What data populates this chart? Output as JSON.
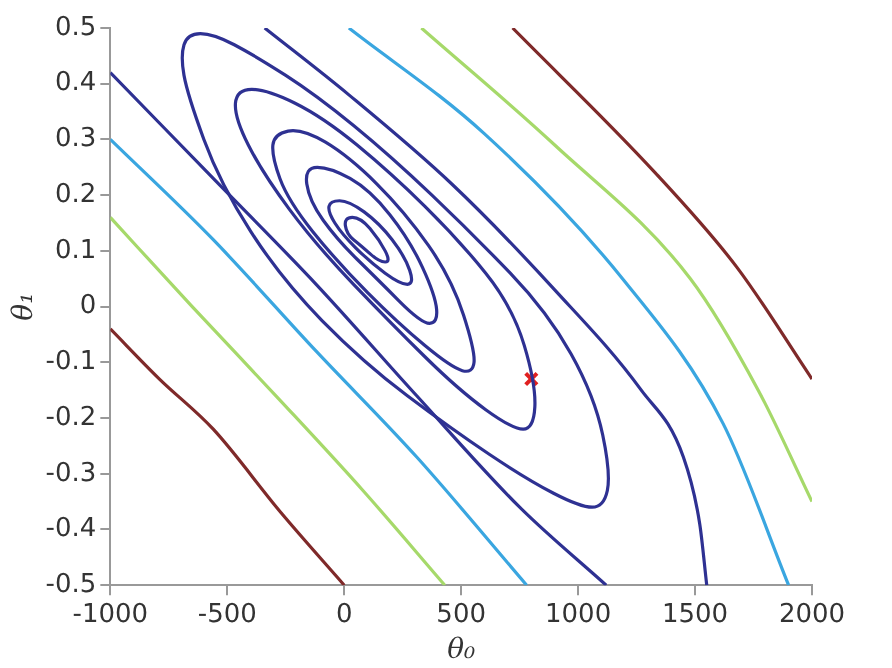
{
  "chart_data": {
    "type": "line",
    "xlabel": "θ₀",
    "ylabel": "θ₁",
    "xlim": [
      -1000,
      2000
    ],
    "xticks": [
      -1000,
      -500,
      0,
      500,
      1000,
      1500,
      2000
    ],
    "ylim": [
      -0.5,
      0.5
    ],
    "yticks": [
      -0.5,
      -0.4,
      -0.3,
      -0.2,
      -0.1,
      0,
      0.1,
      0.2,
      0.3,
      0.4,
      0.5
    ],
    "grid": false,
    "legend": false,
    "line_style": "solid",
    "series": [
      {
        "color": "#7f2a2a",
        "x": [
          -1000,
          -790,
          -560,
          -270,
          0
        ],
        "values": [
          -0.04,
          -0.13,
          -0.22,
          -0.37,
          -0.5
        ]
      },
      {
        "color": "#a6d96a",
        "x": [
          -1000,
          -650,
          -270,
          80,
          430
        ],
        "values": [
          0.16,
          0.0,
          -0.17,
          -0.33,
          -0.5
        ]
      },
      {
        "color": "#3aa6e0",
        "x": [
          -1000,
          -560,
          -120,
          310,
          780
        ],
        "values": [
          0.3,
          0.12,
          -0.08,
          -0.27,
          -0.5
        ]
      },
      {
        "color": "#2e3192",
        "x": [
          -1000,
          -560,
          -120,
          310,
          750,
          1120
        ],
        "values": [
          0.42,
          0.23,
          0.04,
          -0.16,
          -0.36,
          -0.5
        ]
      },
      {
        "color": "#2e3192",
        "x": [
          -340,
          20,
          460,
          900,
          1270,
          1450,
          1520,
          1550
        ],
        "values": [
          0.5,
          0.38,
          0.22,
          0.03,
          -0.15,
          -0.27,
          -0.39,
          -0.5
        ]
      },
      {
        "color": "#3aa6e0",
        "x": [
          20,
          600,
          1190,
          1620,
          1900
        ],
        "values": [
          0.5,
          0.31,
          0.05,
          -0.21,
          -0.5
        ]
      },
      {
        "color": "#a6d96a",
        "x": [
          330,
          900,
          1480,
          1770,
          2000
        ],
        "values": [
          0.5,
          0.29,
          0.05,
          -0.15,
          -0.35
        ]
      },
      {
        "color": "#7f2a2a",
        "x": [
          720,
          1330,
          1680,
          2000
        ],
        "values": [
          0.5,
          0.24,
          0.07,
          -0.13
        ]
      },
      {
        "type": "scatter",
        "marker": "cross",
        "color": "#e02020",
        "x": [
          800
        ],
        "values": [
          -0.13
        ]
      }
    ]
  }
}
